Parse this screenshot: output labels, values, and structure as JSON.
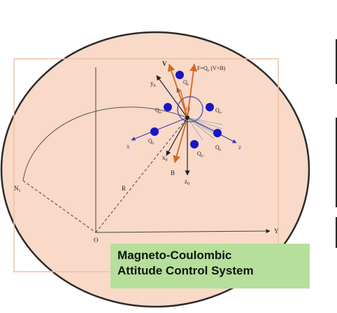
{
  "caption": {
    "line1": "Magneto-Coulombic",
    "line2": "Attitude Control System"
  },
  "axes": {
    "origin": "O",
    "y_axis": "Y",
    "n_label": "N",
    "n_sub": "1",
    "r_label": "R"
  },
  "body_frame": {
    "x0": "x",
    "x0_sub": "0",
    "y0": "y",
    "y0_sub": "0",
    "z0": "z",
    "z0_sub": "0",
    "v": "V",
    "b_top": "B",
    "b_bottom": "B",
    "x": "x",
    "z": "z",
    "q_center": "Q",
    "force_eq": "F=Q",
    "force_sub": "y",
    "force_eq_tail": " (V×B)"
  },
  "charges": [
    {
      "label": "Q",
      "sub": "y"
    },
    {
      "label": "Q",
      "sub": "z-"
    },
    {
      "label": "Q",
      "sub": "x-"
    },
    {
      "label": "Q",
      "sub": "x"
    },
    {
      "label": "Q",
      "sub": "y-"
    },
    {
      "label": "Q",
      "sub": "z"
    }
  ],
  "colors": {
    "disc": "#f9d9c8",
    "disc_border": "#2b2b2b",
    "charge": "#1616c8",
    "orange_vector": "#d2691e",
    "caption_bg": "#b5df9a",
    "axis_blue": "#3a3aa8"
  }
}
